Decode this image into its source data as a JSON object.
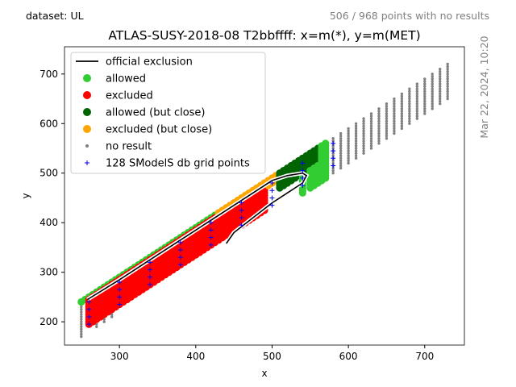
{
  "header": {
    "dataset_label": "dataset: UL",
    "points_note": "506 / 968 points with no results",
    "timestamp": "Mar 22, 2024, 10:20"
  },
  "chart_data": {
    "type": "scatter",
    "title": "ATLAS-SUSY-2018-08 T2bbffff: x=m(*), y=m(MET)",
    "xlabel": "x",
    "ylabel": "y",
    "xlim": [
      228,
      752
    ],
    "ylim": [
      153,
      755
    ],
    "xticks": [
      300,
      400,
      500,
      600,
      700
    ],
    "yticks": [
      200,
      300,
      400,
      500,
      600,
      700
    ],
    "grid": false,
    "legend_position": "top-left",
    "legend": [
      {
        "label": "official exclusion",
        "marker": "line",
        "color": "#000000"
      },
      {
        "label": "allowed",
        "marker": "dot",
        "color": "#32cd32"
      },
      {
        "label": "excluded",
        "marker": "dot",
        "color": "#ff0000"
      },
      {
        "label": "allowed (but close)",
        "marker": "dot",
        "color": "#006400"
      },
      {
        "label": "excluded (but close)",
        "marker": "dot",
        "color": "#ffa500"
      },
      {
        "label": "no result",
        "marker": "small-dot",
        "color": "#808080"
      },
      {
        "label": "128 SModelS db grid points",
        "marker": "plus",
        "color": "#0000ff"
      }
    ],
    "point_bands": {
      "dm_grid": [
        10,
        15,
        20,
        25,
        30,
        35,
        40,
        45,
        50,
        55,
        60,
        65,
        70,
        75,
        80
      ],
      "x_step": 10,
      "no_result": [
        [
          250,
          250
        ],
        [
          270,
          290
        ],
        [
          550,
          570
        ],
        [
          580,
          730
        ]
      ],
      "allowed": [
        [
          250,
          540
        ],
        [
          550,
          570
        ]
      ],
      "excluded": [
        [
          260,
          490
        ]
      ],
      "allowed_but_close": [
        [
          510,
          560
        ]
      ],
      "excluded_but_close": [
        [
          430,
          520
        ]
      ],
      "db_grid_x": [
        260,
        300,
        340,
        380,
        420,
        460,
        500,
        540,
        580
      ]
    },
    "series": [
      {
        "name": "official exclusion",
        "x": [
          258,
          300,
          350,
          400,
          450,
          500,
          520,
          540,
          545,
          540,
          520,
          500,
          450,
          440
        ],
        "y": [
          245,
          285,
          335,
          385,
          435,
          485,
          495,
          500,
          495,
          480,
          460,
          440,
          380,
          358
        ]
      }
    ]
  }
}
